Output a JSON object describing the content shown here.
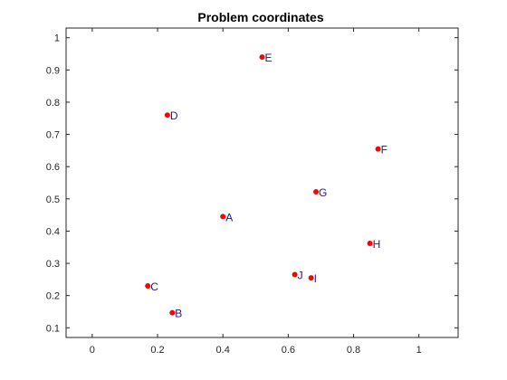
{
  "chart_data": {
    "type": "scatter",
    "title": "Problem coordinates",
    "xlabel": "",
    "ylabel": "",
    "xlim": [
      -0.08,
      1.12
    ],
    "ylim": [
      0.07,
      1.03
    ],
    "x_ticks": [
      0,
      0.2,
      0.4,
      0.6,
      0.8,
      1
    ],
    "x_tick_labels": [
      "0",
      "0.2",
      "0.4",
      "0.6",
      "0.8",
      "1"
    ],
    "y_ticks": [
      0.1,
      0.2,
      0.3,
      0.4,
      0.5,
      0.6,
      0.7,
      0.8,
      0.9,
      1
    ],
    "y_tick_labels": [
      "0.1",
      "0.2",
      "0.3",
      "0.4",
      "0.5",
      "0.6",
      "0.7",
      "0.8",
      "0.9",
      "1"
    ],
    "grid": false,
    "marker_color": "#ff0000",
    "label_color": "#1a1a8c",
    "points": [
      {
        "label": "A",
        "x": 0.4,
        "y": 0.445
      },
      {
        "label": "B",
        "x": 0.245,
        "y": 0.147
      },
      {
        "label": "C",
        "x": 0.17,
        "y": 0.23
      },
      {
        "label": "D",
        "x": 0.23,
        "y": 0.76
      },
      {
        "label": "E",
        "x": 0.52,
        "y": 0.94
      },
      {
        "label": "F",
        "x": 0.875,
        "y": 0.655
      },
      {
        "label": "G",
        "x": 0.685,
        "y": 0.522
      },
      {
        "label": "H",
        "x": 0.85,
        "y": 0.362
      },
      {
        "label": "I",
        "x": 0.67,
        "y": 0.255
      },
      {
        "label": "J",
        "x": 0.62,
        "y": 0.265
      }
    ]
  }
}
